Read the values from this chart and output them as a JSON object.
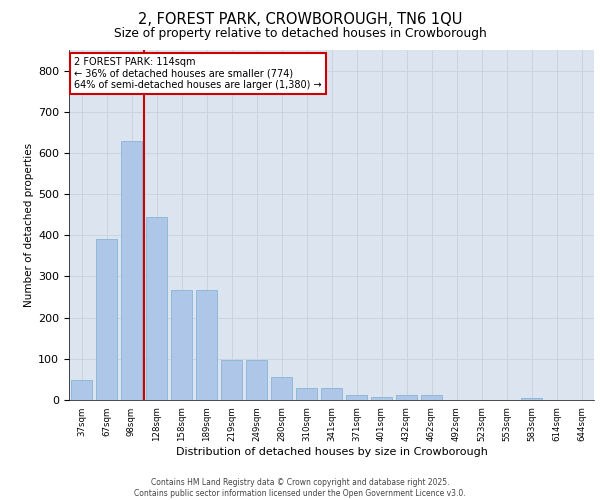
{
  "title1": "2, FOREST PARK, CROWBOROUGH, TN6 1QU",
  "title2": "Size of property relative to detached houses in Crowborough",
  "xlabel": "Distribution of detached houses by size in Crowborough",
  "ylabel": "Number of detached properties",
  "categories": [
    "37sqm",
    "67sqm",
    "98sqm",
    "128sqm",
    "158sqm",
    "189sqm",
    "219sqm",
    "249sqm",
    "280sqm",
    "310sqm",
    "341sqm",
    "371sqm",
    "401sqm",
    "432sqm",
    "462sqm",
    "492sqm",
    "523sqm",
    "553sqm",
    "583sqm",
    "614sqm",
    "644sqm"
  ],
  "values": [
    48,
    390,
    630,
    445,
    268,
    268,
    97,
    98,
    57,
    30,
    30,
    13,
    8,
    11,
    11,
    0,
    0,
    0,
    5,
    0,
    0
  ],
  "bar_color": "#aec6e8",
  "bar_edgecolor": "#7aafd4",
  "vline_x": 2.5,
  "vline_color": "#cc0000",
  "annotation_text_line1": "2 FOREST PARK: 114sqm",
  "annotation_text_line2": "← 36% of detached houses are smaller (774)",
  "annotation_text_line3": "64% of semi-detached houses are larger (1,380) →",
  "annotation_box_edgecolor": "#cc0000",
  "annotation_box_facecolor": "#ffffff",
  "grid_color": "#c8d0dc",
  "background_color": "#dce4f0",
  "ylim": [
    0,
    850
  ],
  "yticks": [
    0,
    100,
    200,
    300,
    400,
    500,
    600,
    700,
    800
  ],
  "footer_line1": "Contains HM Land Registry data © Crown copyright and database right 2025.",
  "footer_line2": "Contains public sector information licensed under the Open Government Licence v3.0."
}
